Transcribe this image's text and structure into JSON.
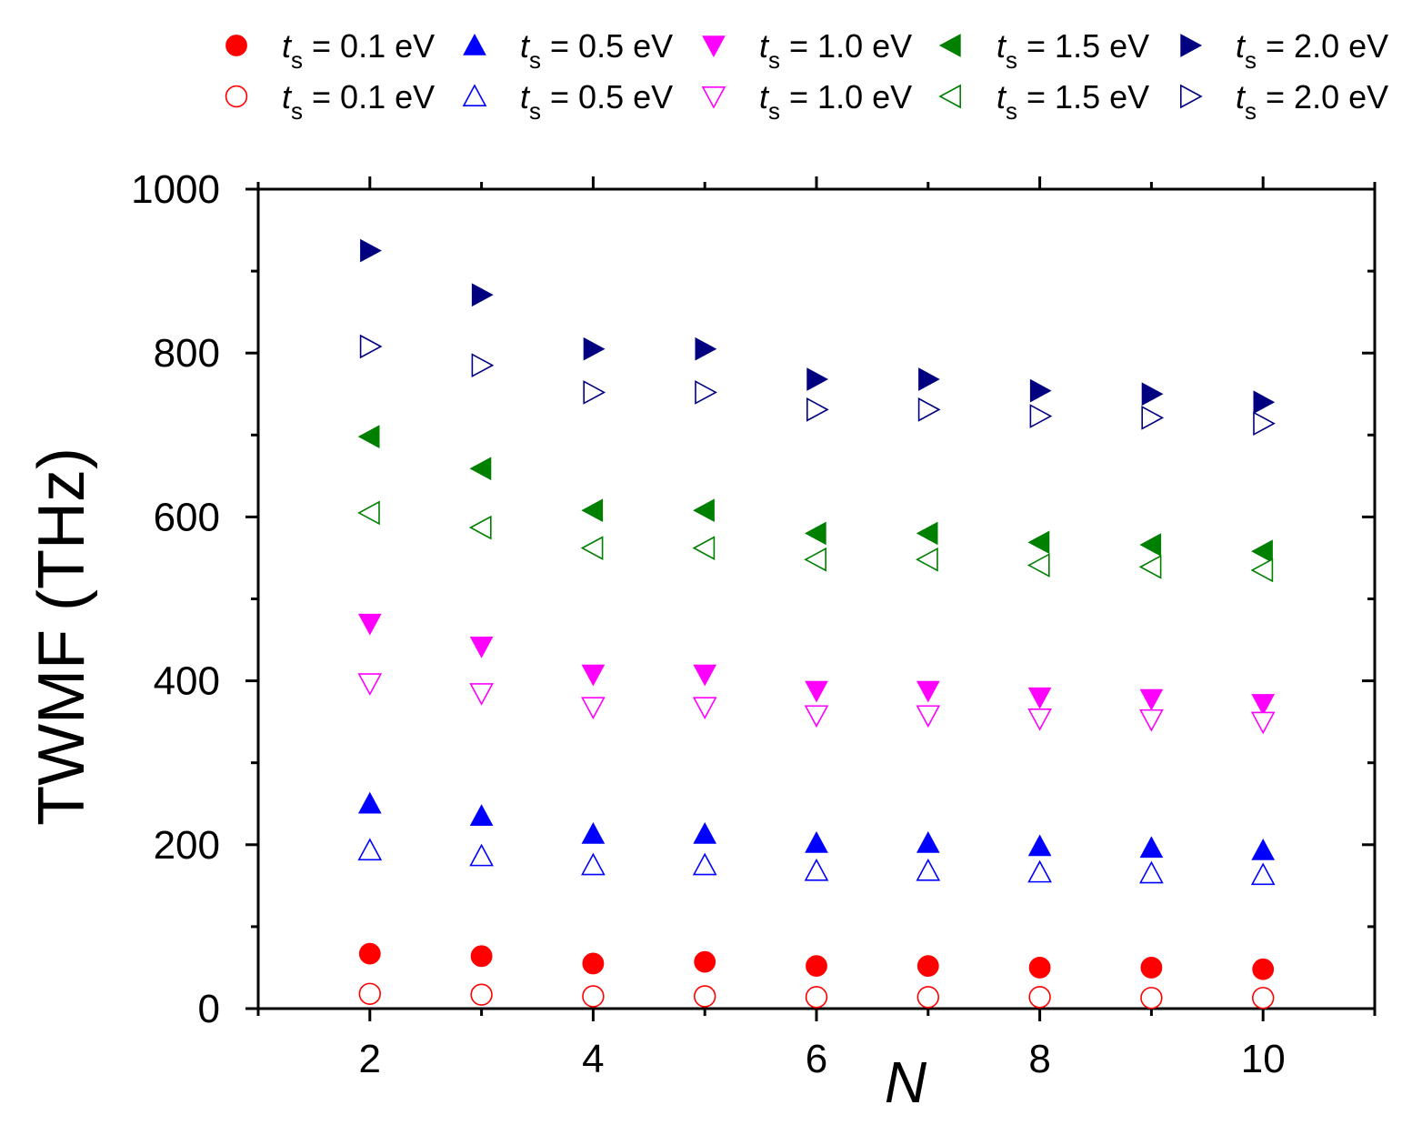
{
  "chart_data": {
    "type": "scatter",
    "xlabel": "N",
    "ylabel": "TWMF (THz)",
    "xlim": [
      1,
      11
    ],
    "ylim": [
      0,
      1000
    ],
    "xticks": [
      2,
      4,
      6,
      8,
      10
    ],
    "yticks": [
      0,
      200,
      400,
      600,
      800,
      1000
    ],
    "grid": false,
    "legend_position": "top",
    "x": [
      2,
      3,
      4,
      5,
      6,
      7,
      8,
      9,
      10
    ],
    "series": [
      {
        "name": "ts = 0.1 eV",
        "label_main": "t",
        "label_sub": "s",
        "label_rest": " = 0.1 eV",
        "marker": "circle",
        "filled": true,
        "color": "#ff0000",
        "values": [
          67,
          64,
          55,
          57,
          52,
          52,
          50,
          50,
          48
        ]
      },
      {
        "name": "ts = 0.5 eV",
        "label_main": "t",
        "label_sub": "s",
        "label_rest": " = 0.5 eV",
        "marker": "triangle-up",
        "filled": true,
        "color": "#0000ff",
        "values": [
          250,
          235,
          213,
          213,
          202,
          202,
          198,
          196,
          193
        ]
      },
      {
        "name": "ts = 1.0 eV",
        "label_main": "t",
        "label_sub": "s",
        "label_rest": " = 1.0 eV",
        "marker": "triangle-down",
        "filled": true,
        "color": "#ff00ff",
        "values": [
          470,
          442,
          408,
          408,
          388,
          388,
          380,
          378,
          372
        ]
      },
      {
        "name": "ts = 1.5 eV",
        "label_main": "t",
        "label_sub": "s",
        "label_rest": " = 1.5 eV",
        "marker": "triangle-left",
        "filled": true,
        "color": "#008000",
        "values": [
          698,
          659,
          608,
          608,
          580,
          580,
          569,
          566,
          558
        ]
      },
      {
        "name": "ts = 2.0 eV",
        "label_main": "t",
        "label_sub": "s",
        "label_rest": " = 2.0 eV",
        "marker": "triangle-right",
        "filled": true,
        "color": "#000080",
        "values": [
          925,
          871,
          805,
          805,
          768,
          768,
          754,
          750,
          740
        ]
      },
      {
        "name": "ts = 0.1 eV",
        "label_main": "t",
        "label_sub": "s",
        "label_rest": " = 0.1 eV",
        "marker": "circle",
        "filled": false,
        "color": "#ff0000",
        "values": [
          18,
          17,
          15,
          15,
          14,
          14,
          14,
          13,
          13
        ]
      },
      {
        "name": "ts = 0.5 eV",
        "label_main": "t",
        "label_sub": "s",
        "label_rest": " = 0.5 eV",
        "marker": "triangle-up",
        "filled": false,
        "color": "#0000ff",
        "values": [
          193,
          186,
          175,
          175,
          168,
          168,
          166,
          165,
          163
        ]
      },
      {
        "name": "ts = 1.0 eV",
        "label_main": "t",
        "label_sub": "s",
        "label_rest": " = 1.0 eV",
        "marker": "triangle-down",
        "filled": false,
        "color": "#ff00ff",
        "values": [
          397,
          385,
          368,
          368,
          358,
          358,
          354,
          353,
          350
        ]
      },
      {
        "name": "ts = 1.5 eV",
        "label_main": "t",
        "label_sub": "s",
        "label_rest": " = 1.5 eV",
        "marker": "triangle-left",
        "filled": false,
        "color": "#008000",
        "values": [
          605,
          587,
          562,
          562,
          548,
          548,
          541,
          539,
          535
        ]
      },
      {
        "name": "ts = 2.0 eV",
        "label_main": "t",
        "label_sub": "s",
        "label_rest": " = 2.0 eV",
        "marker": "triangle-right",
        "filled": false,
        "color": "#000080",
        "values": [
          808,
          785,
          752,
          752,
          731,
          731,
          723,
          721,
          714
        ]
      }
    ]
  }
}
